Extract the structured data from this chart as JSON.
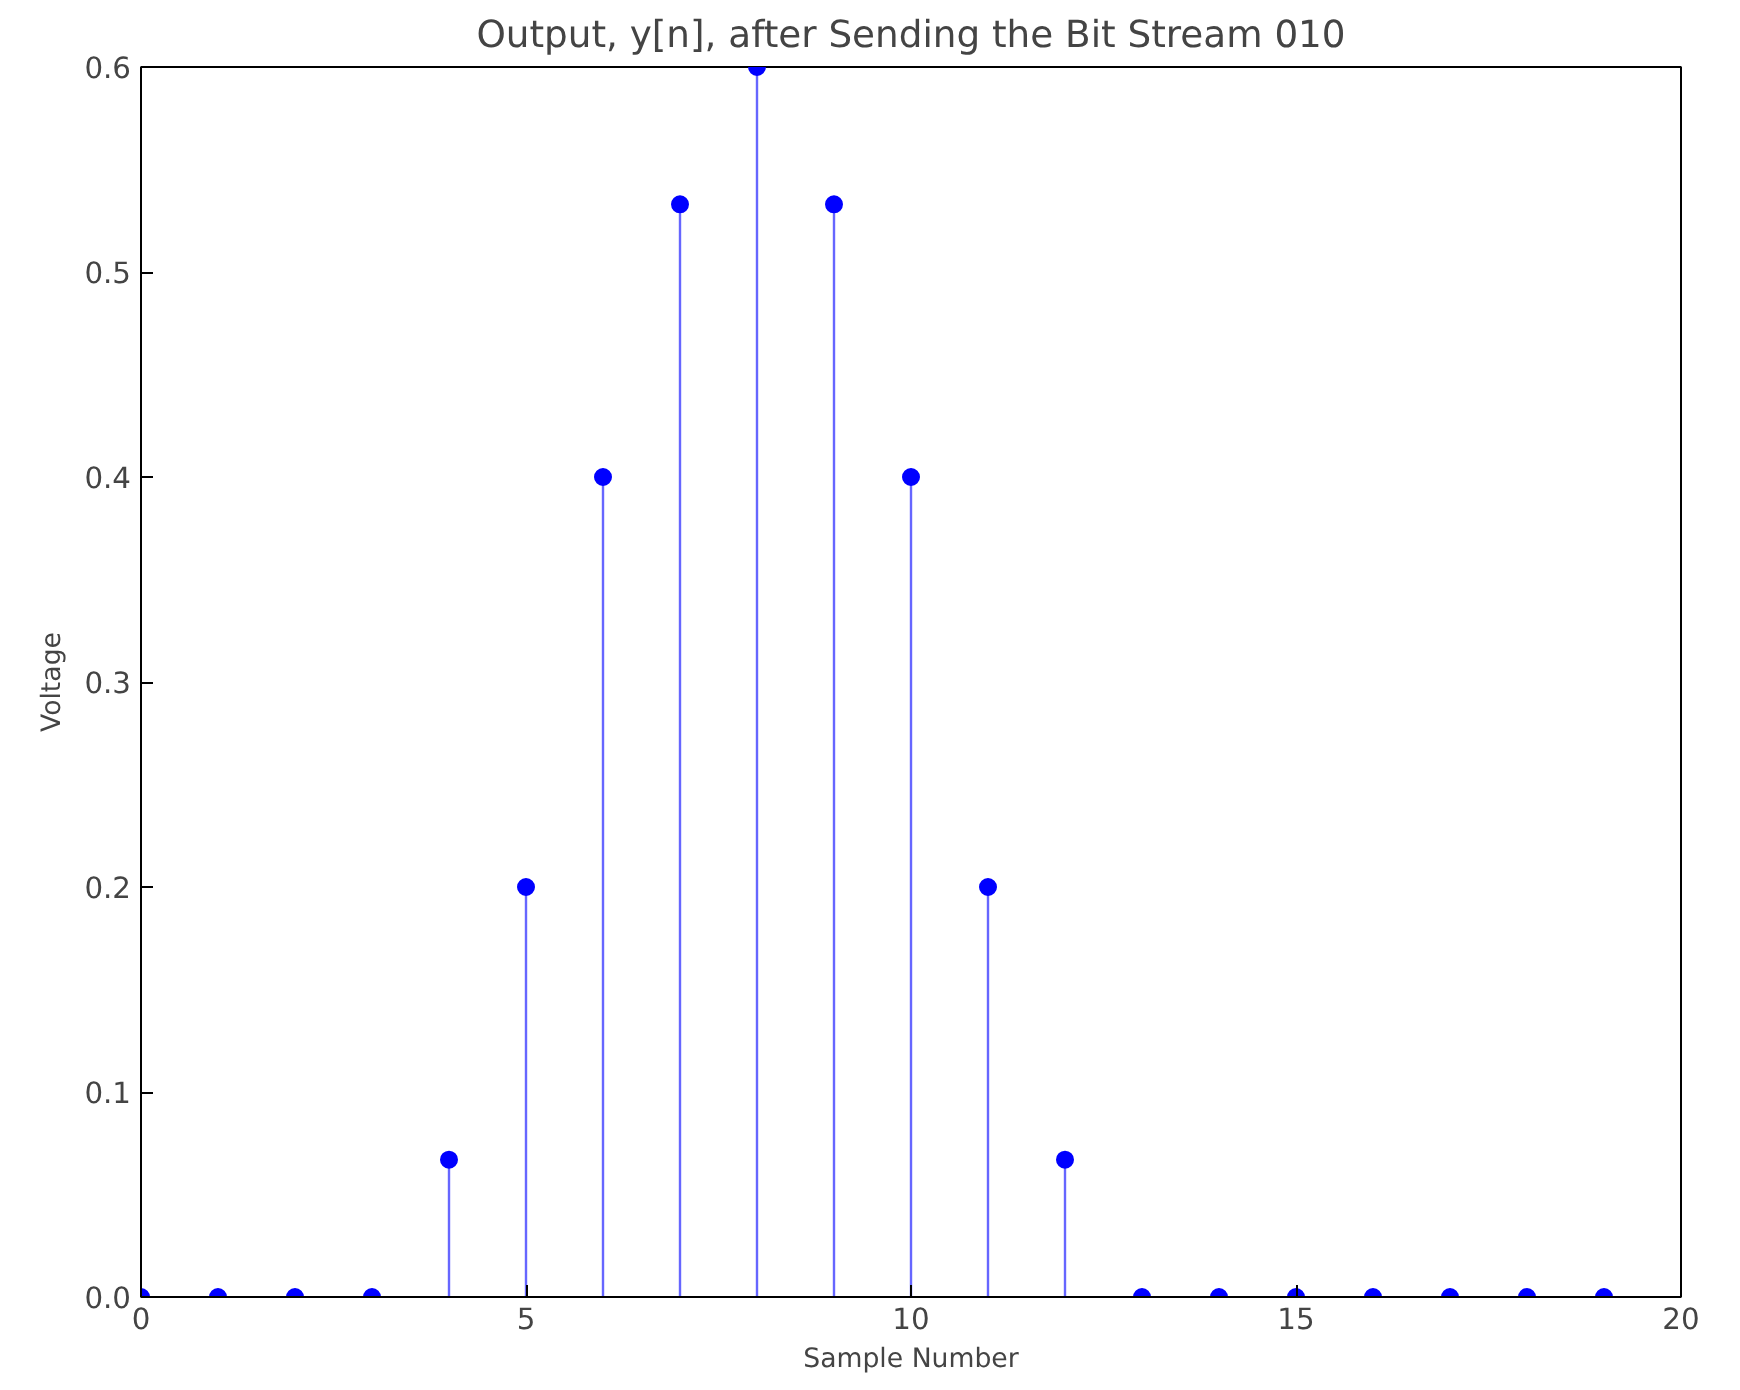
{
  "chart_data": {
    "type": "lollipop",
    "title": "Output, y[n], after Sending the Bit Stream 010",
    "xlabel": "Sample Number",
    "ylabel": "Voltage",
    "x": [
      0,
      1,
      2,
      3,
      4,
      5,
      6,
      7,
      8,
      9,
      10,
      11,
      12,
      13,
      14,
      15,
      16,
      17,
      18,
      19
    ],
    "values": [
      0,
      0,
      0,
      0,
      0.067,
      0.2,
      0.4,
      0.533,
      0.6,
      0.533,
      0.4,
      0.2,
      0.067,
      0,
      0,
      0,
      0,
      0,
      0,
      0
    ],
    "color": "#0000ff",
    "marker": "circle",
    "xlim": [
      0,
      20
    ],
    "ylim": [
      0,
      0.6
    ],
    "xticks": [
      0,
      5,
      10,
      15,
      20
    ],
    "yticks": [
      {
        "value": 0,
        "label": "0.0"
      },
      0.1,
      0.2,
      0.3,
      0.4,
      0.5,
      0.6
    ],
    "grid": false
  }
}
